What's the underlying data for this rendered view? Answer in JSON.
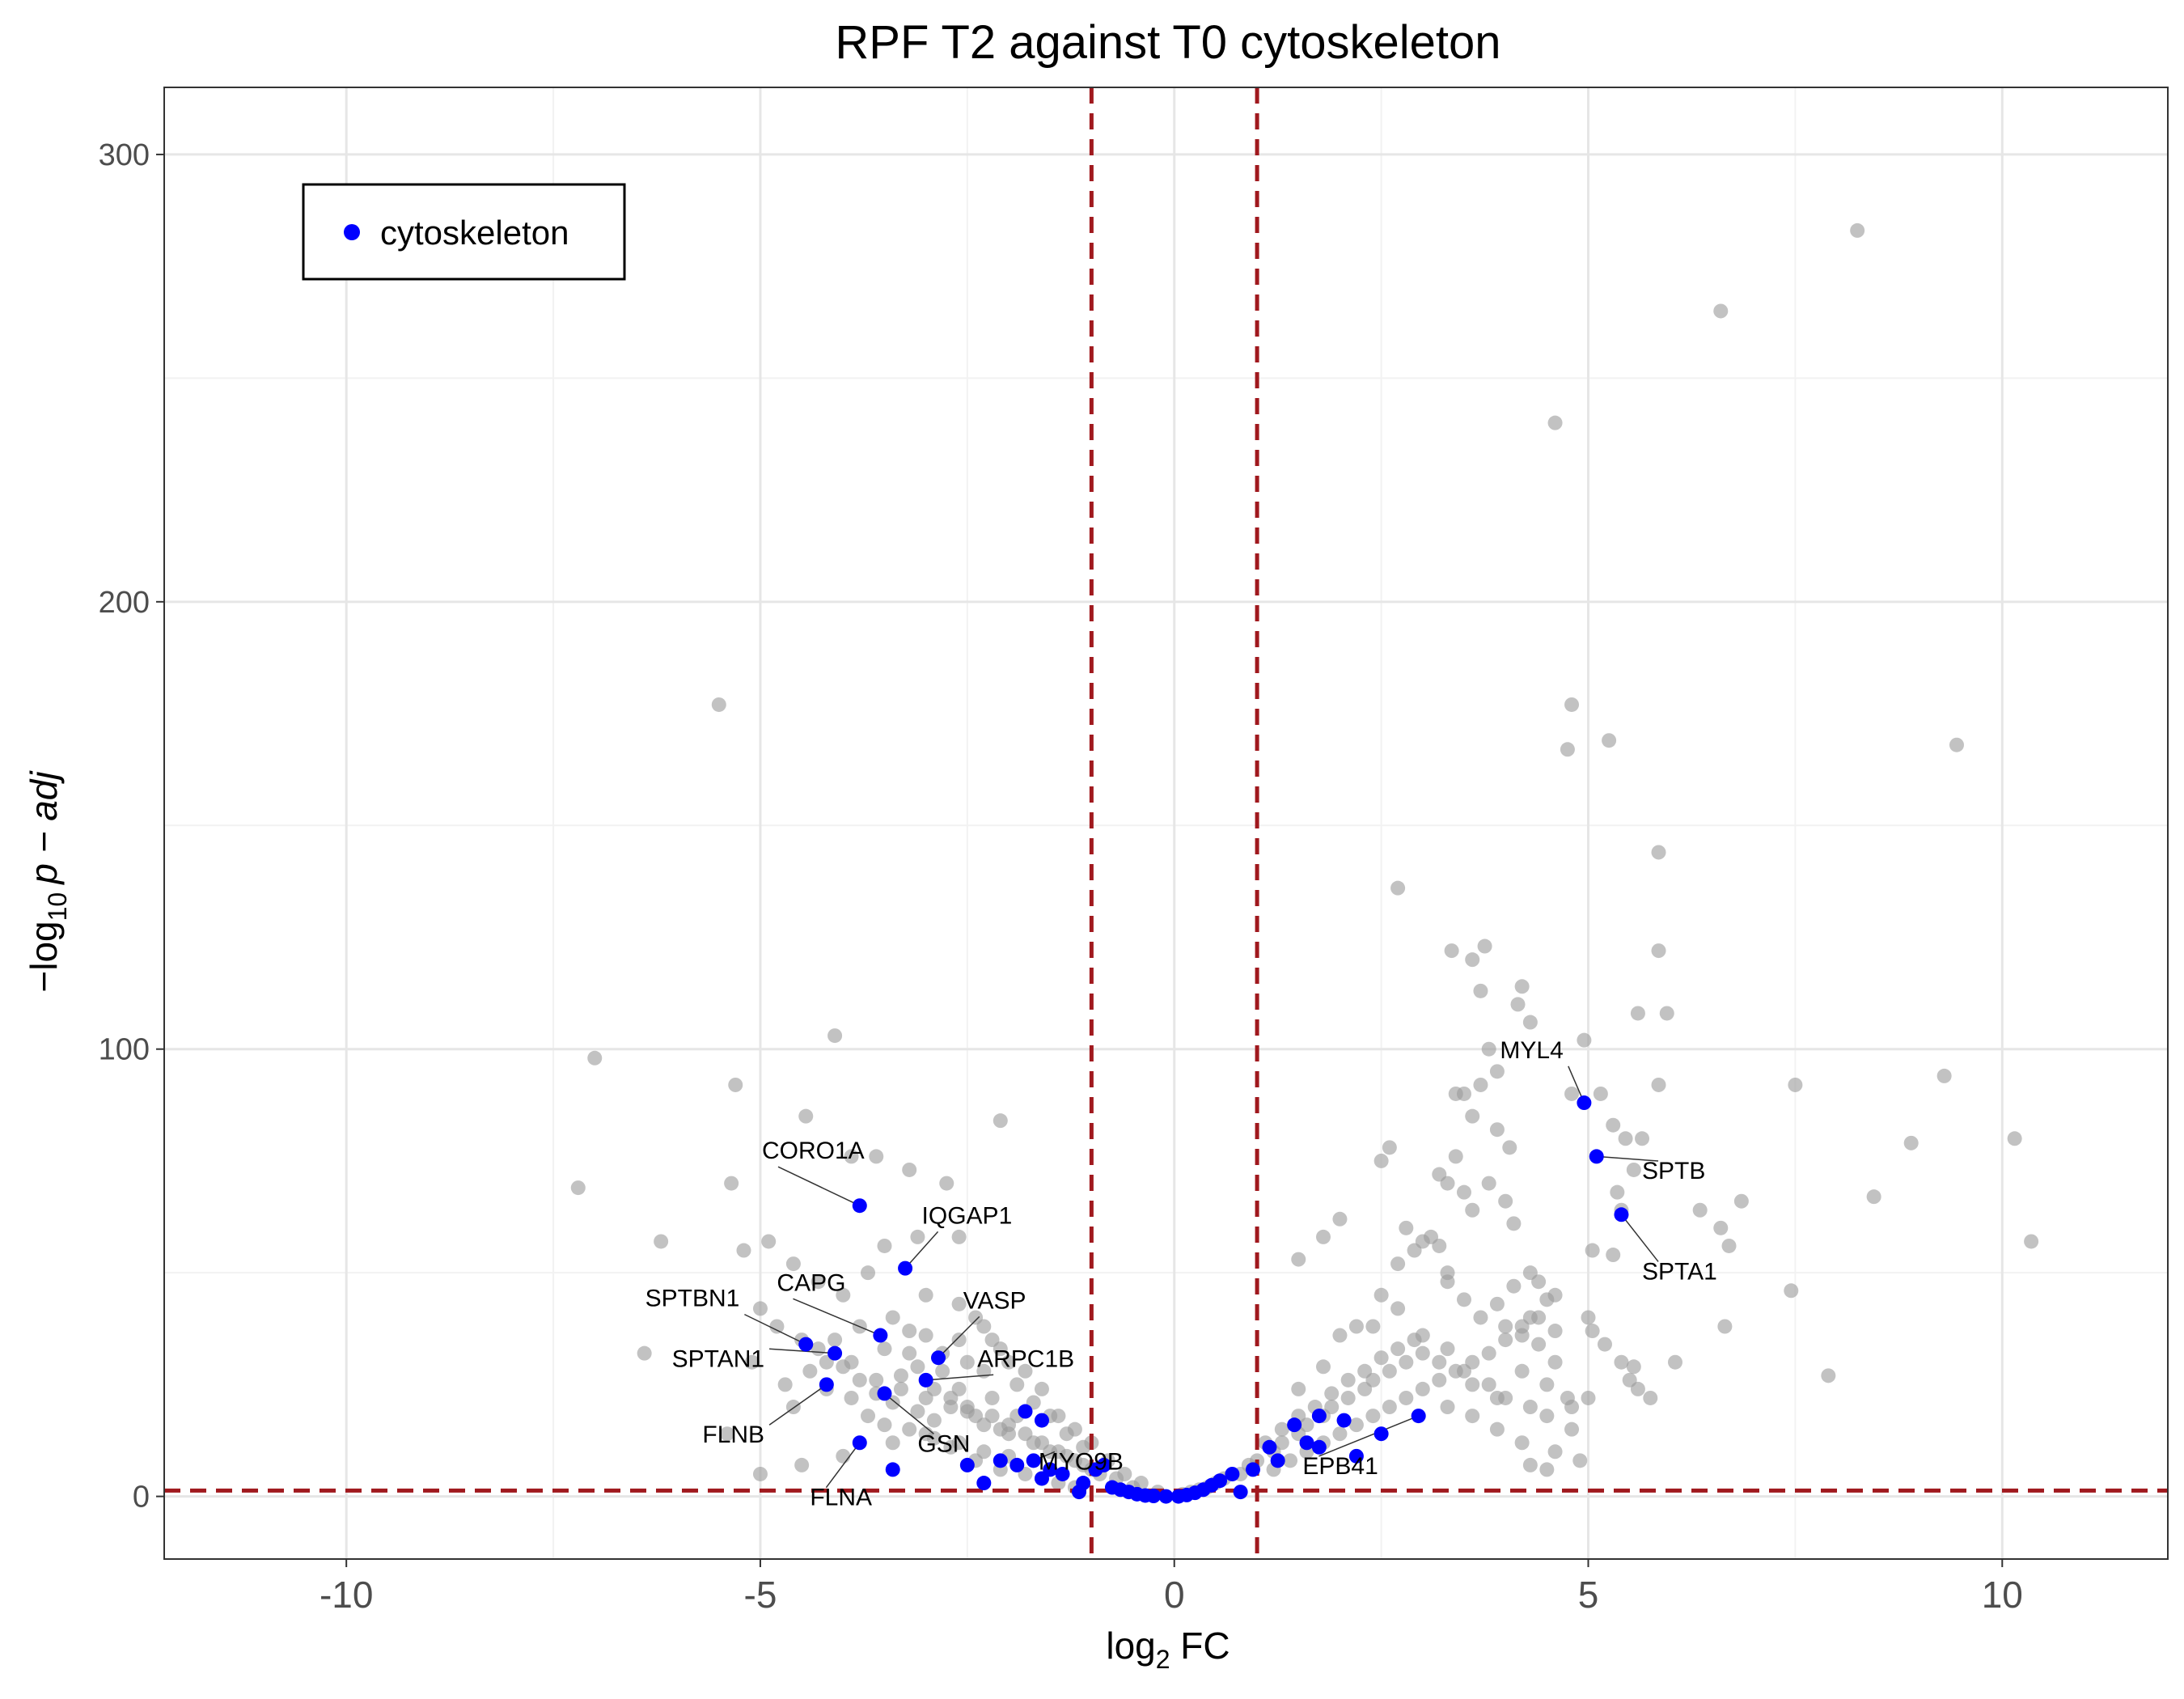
{
  "chart_data": {
    "type": "scatter",
    "title": "RPF T2 against T0 cytoskeleton",
    "xlabel": {
      "main": "log",
      "sub": "2",
      "suffix": " FC"
    },
    "ylabel": {
      "prefix": "−log",
      "sub": "10",
      "italic": "p − adj"
    },
    "xlim": [
      -12.2,
      12.0
    ],
    "ylim": [
      -14,
      315
    ],
    "x_ticks": [
      -10,
      -5,
      0,
      5,
      10
    ],
    "x_tick_labels": [
      "-10",
      "-5",
      "0",
      "5",
      "10"
    ],
    "y_ticks": [
      0,
      100,
      200,
      300
    ],
    "y_tick_labels": [
      "0",
      "100",
      "200",
      "300"
    ],
    "x_minor_gridlines": [
      -7.5,
      -2.5,
      2.5,
      7.5
    ],
    "y_minor_gridlines": [
      50,
      150,
      250
    ],
    "grid": true,
    "thresholds": {
      "vertical": [
        -1,
        1
      ],
      "horizontal": 1.3,
      "color": "#a0191e"
    },
    "legend": {
      "position": "top-left",
      "label": "cytoskeleton",
      "color": "#0000ff"
    },
    "colors": {
      "background_points": "#999999",
      "highlight_points": "#0000ff"
    },
    "background_points": [
      [
        -7.2,
        69
      ],
      [
        -7.0,
        98
      ],
      [
        -5.5,
        177
      ],
      [
        -5.3,
        92
      ],
      [
        -5.35,
        70
      ],
      [
        -4.1,
        103
      ],
      [
        -4.45,
        85
      ],
      [
        -6.2,
        57
      ],
      [
        -6.4,
        32
      ],
      [
        -5.2,
        55
      ],
      [
        -4.9,
        57
      ],
      [
        -4.6,
        52
      ],
      [
        -4.3,
        48
      ],
      [
        -4.0,
        45
      ],
      [
        -3.9,
        76
      ],
      [
        -3.6,
        76
      ],
      [
        -3.2,
        73
      ],
      [
        -2.75,
        70
      ],
      [
        -2.1,
        84
      ],
      [
        -2.6,
        58
      ],
      [
        -3.1,
        58
      ],
      [
        -3.5,
        56
      ],
      [
        -3.7,
        50
      ],
      [
        -5.0,
        42
      ],
      [
        -4.8,
        38
      ],
      [
        -4.5,
        35
      ],
      [
        -4.2,
        30
      ],
      [
        -5.4,
        14
      ],
      [
        -5.0,
        5
      ],
      [
        -4.5,
        7
      ],
      [
        -4.0,
        9
      ],
      [
        -3.7,
        18
      ],
      [
        -3.4,
        12
      ],
      [
        -3.2,
        32
      ],
      [
        -3.0,
        36
      ],
      [
        -2.8,
        28
      ],
      [
        -2.6,
        24
      ],
      [
        -2.4,
        40
      ],
      [
        -2.2,
        35
      ],
      [
        -2.0,
        30
      ],
      [
        -1.8,
        28
      ],
      [
        -1.6,
        24
      ],
      [
        -1.4,
        18
      ],
      [
        -1.2,
        15
      ],
      [
        -1.0,
        12
      ],
      [
        -0.8,
        8
      ],
      [
        -0.6,
        5
      ],
      [
        -0.4,
        3
      ],
      [
        -0.2,
        1
      ],
      [
        -4.3,
        33
      ],
      [
        -4.0,
        29
      ],
      [
        -3.8,
        26
      ],
      [
        -3.6,
        23
      ],
      [
        -3.4,
        21
      ],
      [
        -3.3,
        27
      ],
      [
        -3.1,
        19
      ],
      [
        -2.9,
        17
      ],
      [
        -2.7,
        22
      ],
      [
        -2.5,
        19
      ],
      [
        -2.3,
        16
      ],
      [
        -2.2,
        22
      ],
      [
        -2.0,
        14
      ],
      [
        -1.9,
        18
      ],
      [
        -1.7,
        12
      ],
      [
        -1.5,
        10
      ],
      [
        -1.3,
        9
      ],
      [
        -1.1,
        7
      ],
      [
        -0.9,
        5
      ],
      [
        -0.7,
        4
      ],
      [
        -0.5,
        2
      ],
      [
        -3.0,
        45
      ],
      [
        -2.6,
        43
      ],
      [
        -2.3,
        38
      ],
      [
        -3.4,
        40
      ],
      [
        -3.8,
        38
      ],
      [
        -4.1,
        35
      ],
      [
        -2.1,
        33
      ],
      [
        -1.9,
        25
      ],
      [
        -1.7,
        21
      ],
      [
        -1.5,
        18
      ],
      [
        -1.3,
        14
      ],
      [
        -1.1,
        11
      ],
      [
        -2.5,
        30
      ],
      [
        -2.8,
        32
      ],
      [
        -3.1,
        29
      ],
      [
        -3.5,
        33
      ],
      [
        -3.9,
        30
      ],
      [
        -4.2,
        24
      ],
      [
        -4.6,
        20
      ],
      [
        -3.0,
        14
      ],
      [
        -2.7,
        11
      ],
      [
        -2.4,
        8
      ],
      [
        -2.1,
        6
      ],
      [
        -1.8,
        5
      ],
      [
        -1.6,
        4
      ],
      [
        -1.4,
        3
      ],
      [
        -1.2,
        2
      ],
      [
        -2.9,
        24
      ],
      [
        -2.5,
        20
      ],
      [
        -2.2,
        18
      ],
      [
        -2.0,
        16
      ],
      [
        -1.8,
        14
      ],
      [
        -1.6,
        12
      ],
      [
        -1.4,
        10
      ],
      [
        -1.2,
        8
      ],
      [
        -1.0,
        6
      ],
      [
        -3.6,
        26
      ],
      [
        -3.3,
        24
      ],
      [
        -3.0,
        22
      ],
      [
        -2.7,
        20
      ],
      [
        -2.4,
        18
      ],
      [
        -2.1,
        15
      ],
      [
        -3.5,
        16
      ],
      [
        -3.2,
        15
      ],
      [
        -2.9,
        13
      ],
      [
        -2.6,
        12
      ],
      [
        -2.3,
        10
      ],
      [
        -2.0,
        9
      ],
      [
        -1.7,
        8
      ],
      [
        -3.9,
        22
      ],
      [
        -4.4,
        28
      ],
      [
        -4.7,
        25
      ],
      [
        -5.1,
        30
      ],
      [
        -3.2,
        37
      ],
      [
        -2.6,
        35
      ],
      [
        -2.3,
        28
      ],
      [
        0.1,
        0.5
      ],
      [
        0.2,
        1
      ],
      [
        0.3,
        1.5
      ],
      [
        0.4,
        2
      ],
      [
        0.5,
        3
      ],
      [
        0.6,
        4
      ],
      [
        0.8,
        5
      ],
      [
        0.9,
        7
      ],
      [
        1.0,
        8
      ],
      [
        1.2,
        10
      ],
      [
        1.3,
        12
      ],
      [
        1.5,
        14
      ],
      [
        1.6,
        16
      ],
      [
        1.8,
        18
      ],
      [
        1.9,
        20
      ],
      [
        2.1,
        22
      ],
      [
        2.3,
        24
      ],
      [
        2.4,
        26
      ],
      [
        2.6,
        28
      ],
      [
        2.8,
        30
      ],
      [
        3.0,
        32
      ],
      [
        3.2,
        30
      ],
      [
        3.5,
        28
      ],
      [
        3.8,
        25
      ],
      [
        4.0,
        22
      ],
      [
        4.3,
        20
      ],
      [
        4.5,
        18
      ],
      [
        4.8,
        15
      ],
      [
        3.3,
        20
      ],
      [
        3.6,
        18
      ],
      [
        3.9,
        15
      ],
      [
        4.2,
        12
      ],
      [
        4.6,
        10
      ],
      [
        4.9,
        8
      ],
      [
        4.3,
        7
      ],
      [
        4.5,
        6
      ],
      [
        1.1,
        12
      ],
      [
        1.3,
        15
      ],
      [
        1.5,
        18
      ],
      [
        1.7,
        20
      ],
      [
        1.9,
        23
      ],
      [
        2.1,
        26
      ],
      [
        2.3,
        28
      ],
      [
        2.5,
        31
      ],
      [
        2.7,
        33
      ],
      [
        2.9,
        35
      ],
      [
        1.2,
        6
      ],
      [
        1.4,
        8
      ],
      [
        1.6,
        10
      ],
      [
        1.8,
        12
      ],
      [
        2.0,
        14
      ],
      [
        2.2,
        16
      ],
      [
        2.4,
        18
      ],
      [
        2.6,
        20
      ],
      [
        2.8,
        22
      ],
      [
        3.0,
        24
      ],
      [
        3.2,
        26
      ],
      [
        3.4,
        28
      ],
      [
        3.6,
        30
      ],
      [
        3.8,
        32
      ],
      [
        4.0,
        35
      ],
      [
        4.2,
        38
      ],
      [
        4.4,
        40
      ],
      [
        4.6,
        37
      ],
      [
        1.5,
        24
      ],
      [
        1.8,
        29
      ],
      [
        2.0,
        36
      ],
      [
        2.2,
        38
      ],
      [
        2.5,
        45
      ],
      [
        2.7,
        52
      ],
      [
        2.9,
        55
      ],
      [
        3.1,
        58
      ],
      [
        3.3,
        48
      ],
      [
        3.5,
        44
      ],
      [
        3.7,
        40
      ],
      [
        3.9,
        43
      ],
      [
        4.1,
        47
      ],
      [
        4.3,
        50
      ],
      [
        4.6,
        45
      ],
      [
        2.0,
        62
      ],
      [
        1.8,
        58
      ],
      [
        1.5,
        53
      ],
      [
        2.4,
        38
      ],
      [
        2.7,
        42
      ],
      [
        3.0,
        36
      ],
      [
        3.3,
        33
      ],
      [
        3.6,
        25
      ],
      [
        3.9,
        22
      ],
      [
        2.7,
        136
      ],
      [
        2.6,
        78
      ],
      [
        2.5,
        75
      ],
      [
        2.8,
        60
      ],
      [
        3.0,
        57
      ],
      [
        3.2,
        56
      ],
      [
        3.3,
        50
      ],
      [
        3.4,
        90
      ],
      [
        3.35,
        122
      ],
      [
        3.6,
        120
      ],
      [
        3.75,
        123
      ],
      [
        3.7,
        113
      ],
      [
        4.15,
        110
      ],
      [
        4.2,
        114
      ],
      [
        4.3,
        106
      ],
      [
        3.8,
        100
      ],
      [
        3.9,
        95
      ],
      [
        3.7,
        92
      ],
      [
        3.5,
        90
      ],
      [
        3.6,
        85
      ],
      [
        3.9,
        82
      ],
      [
        4.05,
        78
      ],
      [
        3.4,
        76
      ],
      [
        3.2,
        72
      ],
      [
        3.5,
        68
      ],
      [
        3.8,
        70
      ],
      [
        4.0,
        66
      ],
      [
        3.6,
        64
      ],
      [
        4.1,
        61
      ],
      [
        3.3,
        70
      ],
      [
        4.4,
        48
      ],
      [
        4.5,
        44
      ],
      [
        4.3,
        40
      ],
      [
        4.0,
        38
      ],
      [
        4.2,
        36
      ],
      [
        4.4,
        34
      ],
      [
        4.6,
        30
      ],
      [
        4.2,
        28
      ],
      [
        4.5,
        25
      ],
      [
        4.75,
        22
      ],
      [
        4.75,
        167
      ],
      [
        4.8,
        177
      ],
      [
        5.25,
        169
      ],
      [
        4.95,
        102
      ],
      [
        4.8,
        90
      ],
      [
        5.15,
        90
      ],
      [
        5.3,
        83
      ],
      [
        5.45,
        80
      ],
      [
        5.65,
        80
      ],
      [
        5.85,
        92
      ],
      [
        5.85,
        122
      ],
      [
        5.85,
        144
      ],
      [
        5.95,
        108
      ],
      [
        5.6,
        108
      ],
      [
        5.05,
        55
      ],
      [
        5.3,
        54
      ],
      [
        5.4,
        64
      ],
      [
        5.35,
        68
      ],
      [
        5.55,
        73
      ],
      [
        5.0,
        40
      ],
      [
        5.05,
        37
      ],
      [
        5.2,
        34
      ],
      [
        5.4,
        30
      ],
      [
        5.55,
        29
      ],
      [
        5.6,
        24
      ],
      [
        5.5,
        26
      ],
      [
        5.75,
        22
      ],
      [
        5.0,
        22
      ],
      [
        4.8,
        20
      ],
      [
        6.05,
        30
      ],
      [
        6.6,
        60
      ],
      [
        6.35,
        64
      ],
      [
        6.7,
        56
      ],
      [
        6.85,
        66
      ],
      [
        6.65,
        38
      ],
      [
        6.6,
        265
      ],
      [
        8.25,
        283
      ],
      [
        4.6,
        240
      ],
      [
        7.45,
        46
      ],
      [
        7.5,
        92
      ],
      [
        7.9,
        27
      ],
      [
        8.45,
        67
      ],
      [
        8.9,
        79
      ],
      [
        9.3,
        94
      ],
      [
        9.45,
        168
      ],
      [
        10.15,
        80
      ],
      [
        10.35,
        57
      ]
    ],
    "highlight_points": [
      [
        -3.8,
        65
      ],
      [
        -3.25,
        51
      ],
      [
        -3.55,
        36
      ],
      [
        -4.45,
        34
      ],
      [
        -4.1,
        32
      ],
      [
        -2.85,
        31
      ],
      [
        -4.2,
        25
      ],
      [
        -3.5,
        23
      ],
      [
        -3.0,
        26
      ],
      [
        -3.8,
        12
      ],
      [
        -3.4,
        6
      ],
      [
        -2.5,
        7
      ],
      [
        -2.3,
        3
      ],
      [
        -2.1,
        8
      ],
      [
        -1.9,
        7
      ],
      [
        -1.8,
        19
      ],
      [
        -1.6,
        17
      ],
      [
        -1.7,
        8
      ],
      [
        -1.6,
        4
      ],
      [
        -1.5,
        6
      ],
      [
        -1.35,
        5
      ],
      [
        -1.1,
        3
      ],
      [
        -1.15,
        1
      ],
      [
        -0.95,
        6
      ],
      [
        -0.85,
        7
      ],
      [
        -0.75,
        2
      ],
      [
        -0.65,
        1.5
      ],
      [
        -0.55,
        1
      ],
      [
        -0.45,
        0.5
      ],
      [
        -0.35,
        0.2
      ],
      [
        -0.25,
        0.1
      ],
      [
        -0.1,
        0
      ],
      [
        0.05,
        0
      ],
      [
        0.15,
        0.3
      ],
      [
        0.25,
        0.8
      ],
      [
        0.35,
        1.5
      ],
      [
        0.45,
        2.5
      ],
      [
        0.55,
        3.5
      ],
      [
        0.7,
        5
      ],
      [
        0.8,
        1
      ],
      [
        0.95,
        6
      ],
      [
        1.15,
        11
      ],
      [
        1.25,
        8
      ],
      [
        1.45,
        16
      ],
      [
        1.6,
        12
      ],
      [
        1.75,
        18
      ],
      [
        1.75,
        11
      ],
      [
        2.05,
        17
      ],
      [
        2.2,
        9
      ],
      [
        2.5,
        14
      ],
      [
        2.95,
        18
      ],
      [
        4.95,
        88
      ],
      [
        5.1,
        76
      ],
      [
        5.4,
        63
      ]
    ],
    "annotations": [
      {
        "text": "CORO1A",
        "point": [
          -3.8,
          65
        ],
        "label_x": -4.98,
        "label_y": 75.5,
        "anchor": "start"
      },
      {
        "text": "IQGAP1",
        "point": [
          -3.25,
          51
        ],
        "label_x": -3.05,
        "label_y": 61,
        "anchor": "start"
      },
      {
        "text": "CAPG",
        "point": [
          -3.55,
          36
        ],
        "label_x": -4.8,
        "label_y": 46,
        "anchor": "start"
      },
      {
        "text": "SPTBN1",
        "point": [
          -4.45,
          34
        ],
        "label_x": -5.25,
        "label_y": 42.5,
        "anchor": "end"
      },
      {
        "text": "VASP",
        "point": [
          -2.85,
          31
        ],
        "label_x": -2.55,
        "label_y": 42,
        "anchor": "start"
      },
      {
        "text": "SPTAN1",
        "point": [
          -4.1,
          32
        ],
        "label_x": -4.95,
        "label_y": 29,
        "anchor": "end"
      },
      {
        "text": "ARPC1B",
        "point": [
          -3.0,
          26
        ],
        "label_x": -2.38,
        "label_y": 29,
        "anchor": "start"
      },
      {
        "text": "FLNB",
        "point": [
          -4.2,
          25
        ],
        "label_x": -4.95,
        "label_y": 12,
        "anchor": "end"
      },
      {
        "text": "GSN",
        "point": [
          -3.5,
          23
        ],
        "label_x": -3.1,
        "label_y": 10,
        "anchor": "start"
      },
      {
        "text": "FLNA",
        "point": [
          -3.8,
          12
        ],
        "label_x": -4.4,
        "label_y": -2,
        "anchor": "start"
      },
      {
        "text": "MYO9B",
        "point": [
          -1.7,
          8
        ],
        "label_x": -1.64,
        "label_y": 6,
        "anchor": "start"
      },
      {
        "text": "EPB41",
        "point": [
          2.95,
          18
        ],
        "label_x": 1.55,
        "label_y": 5,
        "anchor": "start"
      },
      {
        "text": "MYL4",
        "point": [
          4.95,
          88
        ],
        "label_x": 4.7,
        "label_y": 98,
        "anchor": "end"
      },
      {
        "text": "SPTB",
        "point": [
          5.1,
          76
        ],
        "label_x": 5.65,
        "label_y": 71,
        "anchor": "start"
      },
      {
        "text": "SPTA1",
        "point": [
          5.4,
          63
        ],
        "label_x": 5.65,
        "label_y": 48.5,
        "anchor": "start"
      }
    ]
  }
}
